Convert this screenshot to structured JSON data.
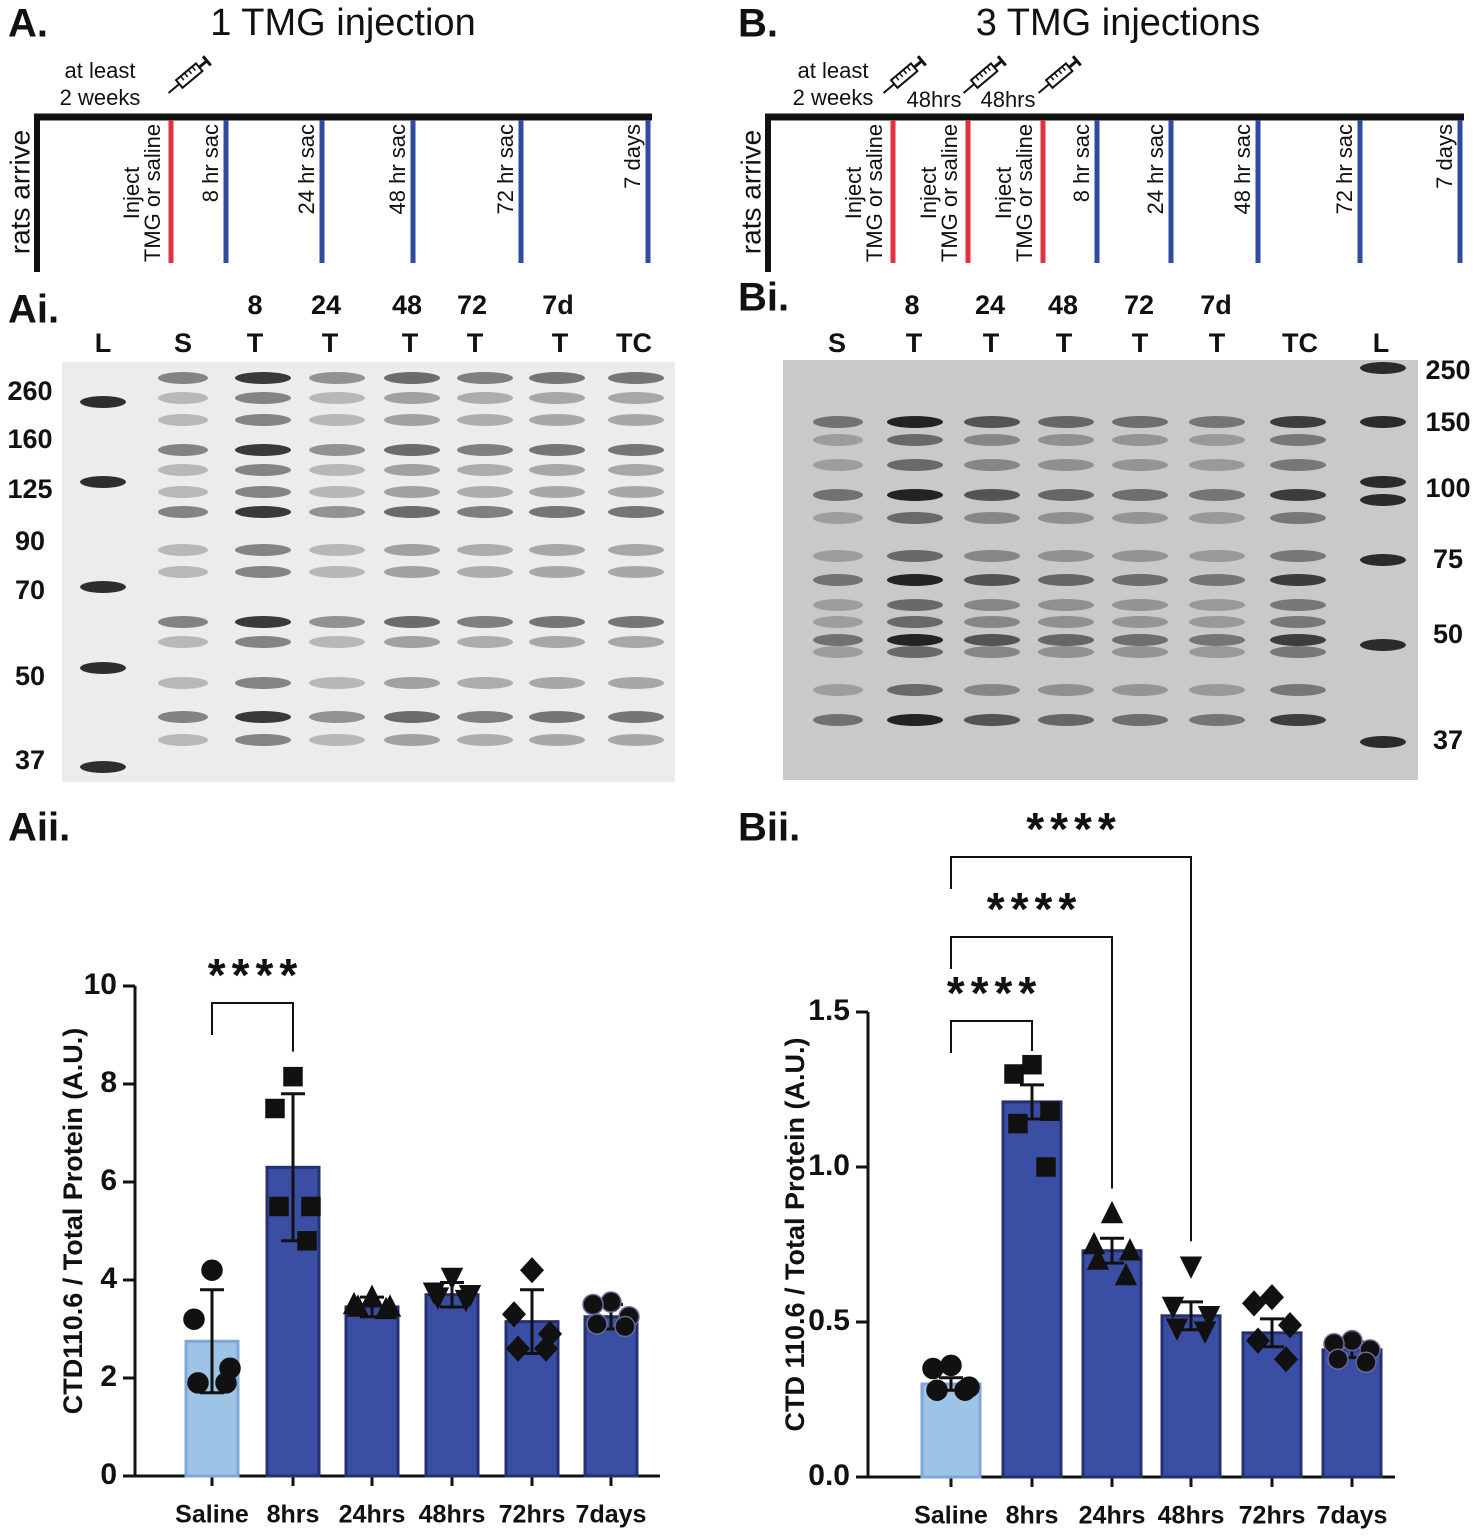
{
  "panels": {
    "A": "A.",
    "B": "B.",
    "Ai": "Ai.",
    "Bi": "Bi.",
    "Aii": "Aii.",
    "Bii": "Bii."
  },
  "timelines": [
    {
      "title": "1 TMG injection",
      "start": "rats arrive",
      "wait": [
        "at least",
        "2 weeks"
      ],
      "intervals": [],
      "injections": [
        [
          "Inject",
          "TMG or saline"
        ]
      ],
      "sacrifices": [
        "8 hr sac",
        "24 hr sac",
        "48 hr sac",
        "72 hr sac",
        "7 days"
      ]
    },
    {
      "title": "3 TMG injections",
      "start": "rats arrive",
      "wait": [
        "at least",
        "2 weeks"
      ],
      "intervals": [
        "48hrs",
        "48hrs"
      ],
      "injections": [
        [
          "Inject",
          "TMG or saline"
        ],
        [
          "Inject",
          "TMG or saline"
        ],
        [
          "Inject",
          "TMG or saline"
        ]
      ],
      "sacrifices": [
        "8 hr sac",
        "24 hr sac",
        "48 hr sac",
        "72 hr sac",
        "7 days"
      ]
    }
  ],
  "blots": [
    {
      "time_row": [
        "8",
        "24",
        "48",
        "72",
        "7d"
      ],
      "lanes": [
        "L",
        "S",
        "T",
        "T",
        "T",
        "T",
        "T",
        "TC"
      ],
      "mw": [
        "260",
        "160",
        "125",
        "90",
        "70",
        "50",
        "37"
      ]
    },
    {
      "time_row": [
        "8",
        "24",
        "48",
        "72",
        "7d"
      ],
      "lanes": [
        "S",
        "T",
        "T",
        "T",
        "T",
        "T",
        "TC",
        "L"
      ],
      "mw": [
        "250",
        "150",
        "100",
        "75",
        "50",
        "37"
      ]
    }
  ],
  "chart_data": [
    {
      "type": "bar",
      "y_label": "CTD110.6 / Total Protein (A.U.)",
      "categories": [
        "Saline",
        "8hrs",
        "24hrs",
        "48hrs",
        "72hrs",
        "7days"
      ],
      "values": [
        2.75,
        6.3,
        3.45,
        3.7,
        3.15,
        3.25
      ],
      "errors": [
        1.05,
        1.5,
        0.2,
        0.25,
        0.65,
        0.25
      ],
      "points": [
        [
          4.2,
          3.2,
          2.2,
          1.9,
          1.9
        ],
        [
          8.15,
          7.5,
          5.5,
          5.5,
          4.8
        ],
        [
          3.65,
          3.5,
          3.45,
          3.45,
          3.4
        ],
        [
          4.05,
          3.75,
          3.7,
          3.65,
          3.6
        ],
        [
          4.2,
          3.3,
          2.9,
          2.6,
          2.6
        ],
        [
          3.55,
          3.5,
          3.25,
          3.1,
          3.05
        ]
      ],
      "markers": [
        "circle",
        "square",
        "triangle",
        "triangle-down",
        "diamond",
        "circle"
      ],
      "colors": [
        "#9dc3e6",
        "#3a4ea3",
        "#3a4ea3",
        "#3a4ea3",
        "#3a4ea3",
        "#3a4ea3"
      ],
      "ylim": [
        0,
        10
      ],
      "yticks": [
        0,
        2,
        4,
        6,
        8,
        10
      ],
      "comparisons": [
        {
          "groups": [
            "Saline",
            "8hrs"
          ],
          "label": "****"
        }
      ]
    },
    {
      "type": "bar",
      "y_label": "CTD 110.6 / Total Protein (A.U.)",
      "categories": [
        "Saline",
        "8hrs",
        "24hrs",
        "48hrs",
        "72hrs",
        "7days"
      ],
      "values": [
        0.3,
        1.21,
        0.73,
        0.52,
        0.465,
        0.41
      ],
      "errors": [
        0.02,
        0.055,
        0.04,
        0.045,
        0.045,
        0.025
      ],
      "points": [
        [
          0.36,
          0.35,
          0.29,
          0.28,
          0.28
        ],
        [
          1.33,
          1.3,
          1.18,
          1.14,
          1.0
        ],
        [
          0.85,
          0.75,
          0.73,
          0.7,
          0.65
        ],
        [
          0.68,
          0.55,
          0.52,
          0.48,
          0.47
        ],
        [
          0.58,
          0.56,
          0.49,
          0.44,
          0.38
        ],
        [
          0.44,
          0.43,
          0.41,
          0.38,
          0.37
        ]
      ],
      "markers": [
        "circle",
        "square",
        "triangle",
        "triangle-down",
        "diamond",
        "circle"
      ],
      "colors": [
        "#9dc3e6",
        "#3a4ea3",
        "#3a4ea3",
        "#3a4ea3",
        "#3a4ea3",
        "#3a4ea3"
      ],
      "ylim": [
        0,
        1.5
      ],
      "yticks": [
        {
          "value": 0,
          "label": "0.0"
        },
        0.5,
        {
          "value": 1,
          "label": "1.0"
        },
        1.5
      ],
      "comparisons": [
        {
          "groups": [
            "Saline",
            "8hrs"
          ],
          "label": "****"
        },
        {
          "groups": [
            "Saline",
            "24hrs"
          ],
          "label": "****"
        },
        {
          "groups": [
            "Saline",
            "48hrs"
          ],
          "label": "****"
        }
      ]
    }
  ]
}
